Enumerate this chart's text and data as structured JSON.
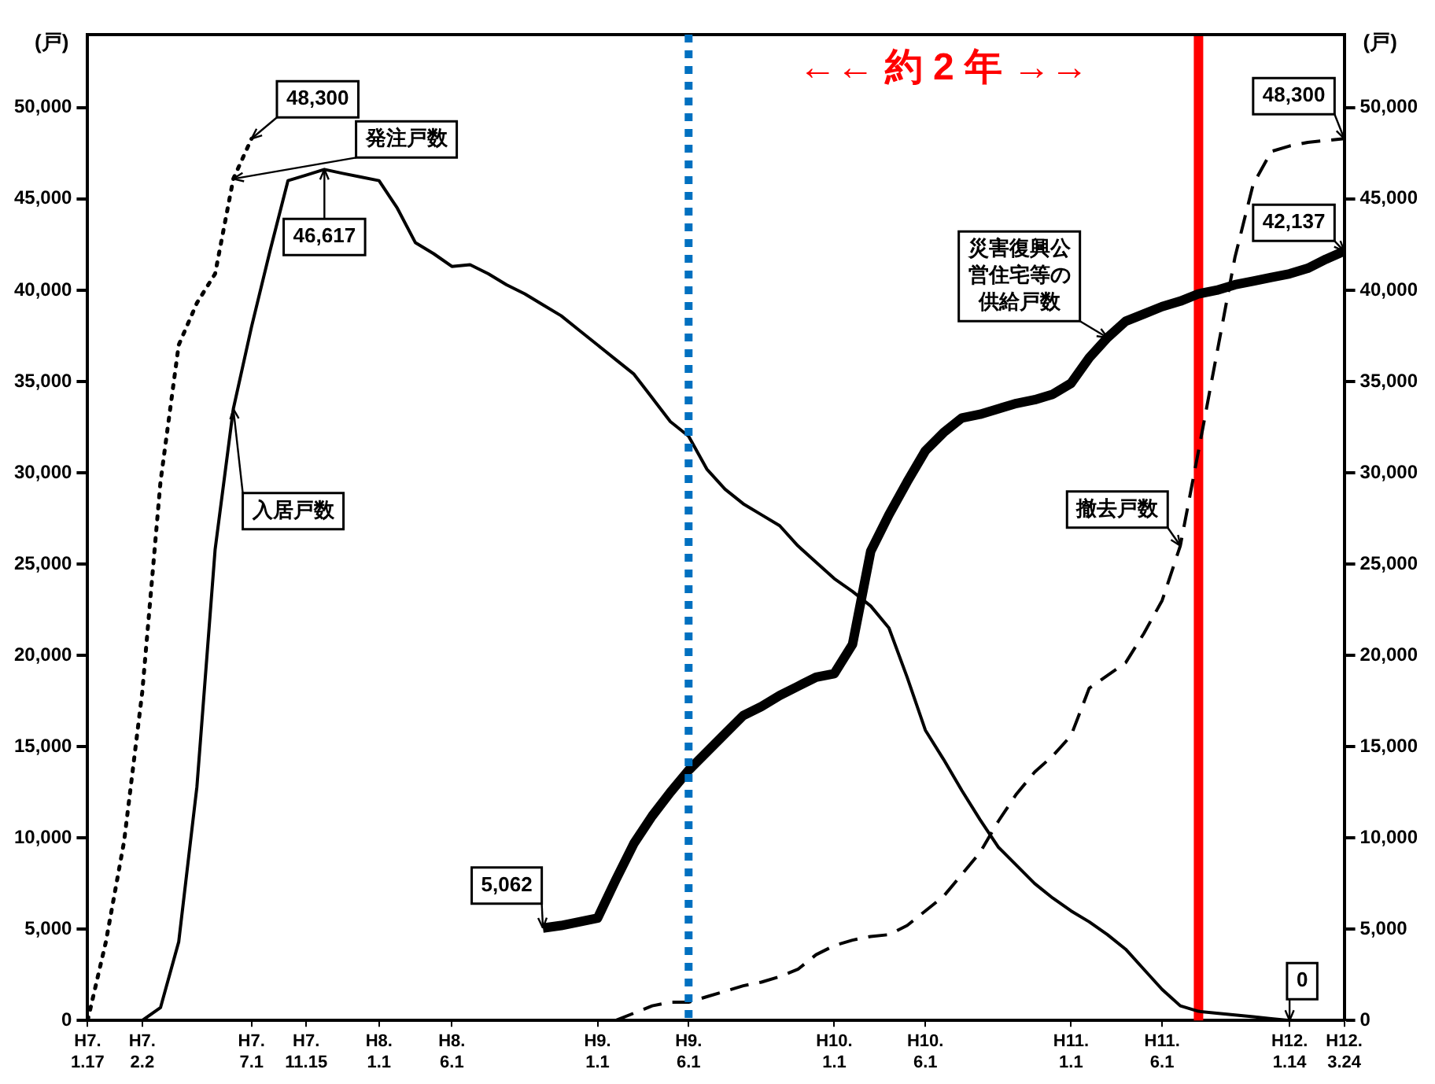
{
  "chart_data": {
    "type": "line",
    "ylabel": "(戸)",
    "y2label": "(戸)",
    "grid": false,
    "legend": false,
    "marker": "none",
    "categories": [
      "H7.\n1.17",
      null,
      null,
      "H7.\n2.2",
      null,
      null,
      null,
      null,
      null,
      "H7.\n7.1",
      null,
      null,
      "H7.\n11.15",
      null,
      null,
      null,
      "H8.\n1.1",
      null,
      null,
      null,
      "H8.\n6.1",
      null,
      null,
      null,
      null,
      null,
      null,
      null,
      "H9.\n1.1",
      null,
      null,
      null,
      null,
      "H9.\n6.1",
      null,
      null,
      null,
      null,
      null,
      null,
      null,
      "H10.\n1.1",
      null,
      null,
      null,
      null,
      "H10.\n6.1",
      null,
      null,
      null,
      null,
      null,
      null,
      null,
      "H11.\n1.1",
      null,
      null,
      null,
      null,
      "H11.\n6.1",
      null,
      null,
      null,
      null,
      null,
      null,
      "H12.\n1.14",
      null,
      null,
      "H12.\n3.24"
    ],
    "ylim": [
      0,
      54000
    ],
    "yticks": [
      0,
      {
        "value": 5000,
        "label": "5,000"
      },
      {
        "value": 10000,
        "label": "10,000"
      },
      {
        "value": 15000,
        "label": "15,000"
      },
      {
        "value": 20000,
        "label": "20,000"
      },
      {
        "value": 25000,
        "label": "25,000"
      },
      {
        "value": 30000,
        "label": "30,000"
      },
      {
        "value": 35000,
        "label": "35,000"
      },
      {
        "value": 40000,
        "label": "40,000"
      },
      {
        "value": 45000,
        "label": "45,000"
      },
      {
        "value": 50000,
        "label": "50,000"
      }
    ],
    "y2lim": [
      0,
      54000
    ],
    "y2ticks": [
      0,
      {
        "value": 5000,
        "label": "5,000"
      },
      {
        "value": 10000,
        "label": "10,000"
      },
      {
        "value": 15000,
        "label": "15,000"
      },
      {
        "value": 20000,
        "label": "20,000"
      },
      {
        "value": 25000,
        "label": "25,000"
      },
      {
        "value": 30000,
        "label": "30,000"
      },
      {
        "value": 35000,
        "label": "35,000"
      },
      {
        "value": 40000,
        "label": "40,000"
      },
      {
        "value": 45000,
        "label": "45,000"
      },
      {
        "value": 50000,
        "label": "50,000"
      }
    ],
    "series": [
      {
        "name": "発注戸数",
        "color": "#000000",
        "line_style": "dotted",
        "values": [
          0,
          4300,
          9800,
          18000,
          29500,
          37000,
          39300,
          40900,
          46100,
          48300,
          null,
          null,
          null,
          null,
          null,
          null,
          null,
          null,
          null,
          null,
          null,
          null,
          null,
          null,
          null,
          null,
          null,
          null,
          null,
          null,
          null,
          null,
          null,
          null,
          null,
          null,
          null,
          null,
          null,
          null,
          null,
          null,
          null,
          null,
          null,
          null,
          null,
          null,
          null,
          null,
          null,
          null,
          null,
          null,
          null,
          null,
          null,
          null,
          null,
          null,
          null,
          null,
          null,
          null,
          null,
          null,
          null,
          null,
          null,
          null
        ]
      },
      {
        "name": "入居戸数",
        "color": "#000000",
        "line_style": "solid",
        "values": [
          null,
          null,
          null,
          0,
          700,
          4300,
          12800,
          25800,
          33500,
          38000,
          42100,
          46000,
          46300,
          46617,
          46400,
          46200,
          46000,
          44500,
          42600,
          42000,
          41300,
          41400,
          40900,
          40300,
          39800,
          39200,
          38600,
          37800,
          37000,
          36200,
          35400,
          34100,
          32800,
          32000,
          30200,
          29100,
          28300,
          27700,
          27100,
          26000,
          25100,
          24200,
          23500,
          22700,
          21500,
          18800,
          15900,
          14300,
          12600,
          11000,
          9500,
          8500,
          7500,
          6700,
          6000,
          5400,
          4700,
          3900,
          2800,
          1700,
          800,
          500,
          400,
          300,
          200,
          100,
          0,
          null,
          null,
          null
        ]
      },
      {
        "name": "災害復興公営住宅等の供給戸数",
        "color": "#000000",
        "line_style": "solid",
        "values": [
          null,
          null,
          null,
          null,
          null,
          null,
          null,
          null,
          null,
          null,
          null,
          null,
          null,
          null,
          null,
          null,
          null,
          null,
          null,
          null,
          null,
          null,
          null,
          null,
          null,
          5062,
          5200,
          5400,
          5600,
          7700,
          9700,
          11200,
          12500,
          13700,
          14700,
          15700,
          16700,
          17200,
          17800,
          18300,
          18800,
          19000,
          20600,
          25700,
          27700,
          29500,
          31200,
          32200,
          33000,
          33200,
          33500,
          33800,
          34000,
          34300,
          34900,
          36300,
          37400,
          38300,
          38700,
          39100,
          39400,
          39800,
          40000,
          40300,
          40500,
          40700,
          40900,
          41200,
          41700,
          42137
        ]
      },
      {
        "name": "撤去戸数",
        "color": "#000000",
        "line_style": "dashed",
        "values": [
          null,
          null,
          null,
          null,
          null,
          null,
          null,
          null,
          null,
          null,
          null,
          null,
          null,
          null,
          null,
          null,
          null,
          null,
          null,
          null,
          null,
          null,
          null,
          null,
          null,
          null,
          null,
          null,
          null,
          0,
          400,
          800,
          1000,
          1000,
          1300,
          1600,
          1900,
          2100,
          2400,
          2800,
          3600,
          4100,
          4400,
          4600,
          4700,
          5200,
          6000,
          6800,
          8000,
          9200,
          10900,
          12400,
          13600,
          14500,
          15600,
          18200,
          18900,
          19600,
          21200,
          23000,
          26000,
          31200,
          36500,
          41800,
          45800,
          47600,
          47900,
          48100,
          48200,
          48300
        ]
      }
    ],
    "ref_lines": [
      {
        "axis": "x",
        "value": "H9.\n6.1",
        "color": "#0070c0",
        "line_style": "dotted"
      }
    ],
    "annotations": [
      "←← 約 2 年 →→",
      {
        "text": "48,300",
        "x": "H7.\n7.1",
        "y": 48300
      },
      {
        "text": "46,617",
        "y": 46617
      },
      "5,062",
      {
        "text": "42,137",
        "x": "H12.\n3.24",
        "y": 42137
      },
      {
        "text": "48,300",
        "x": "H12.\n3.24",
        "y": 48300
      },
      {
        "text": "0",
        "x": "H12.\n1.14",
        "y": 0
      }
    ]
  }
}
